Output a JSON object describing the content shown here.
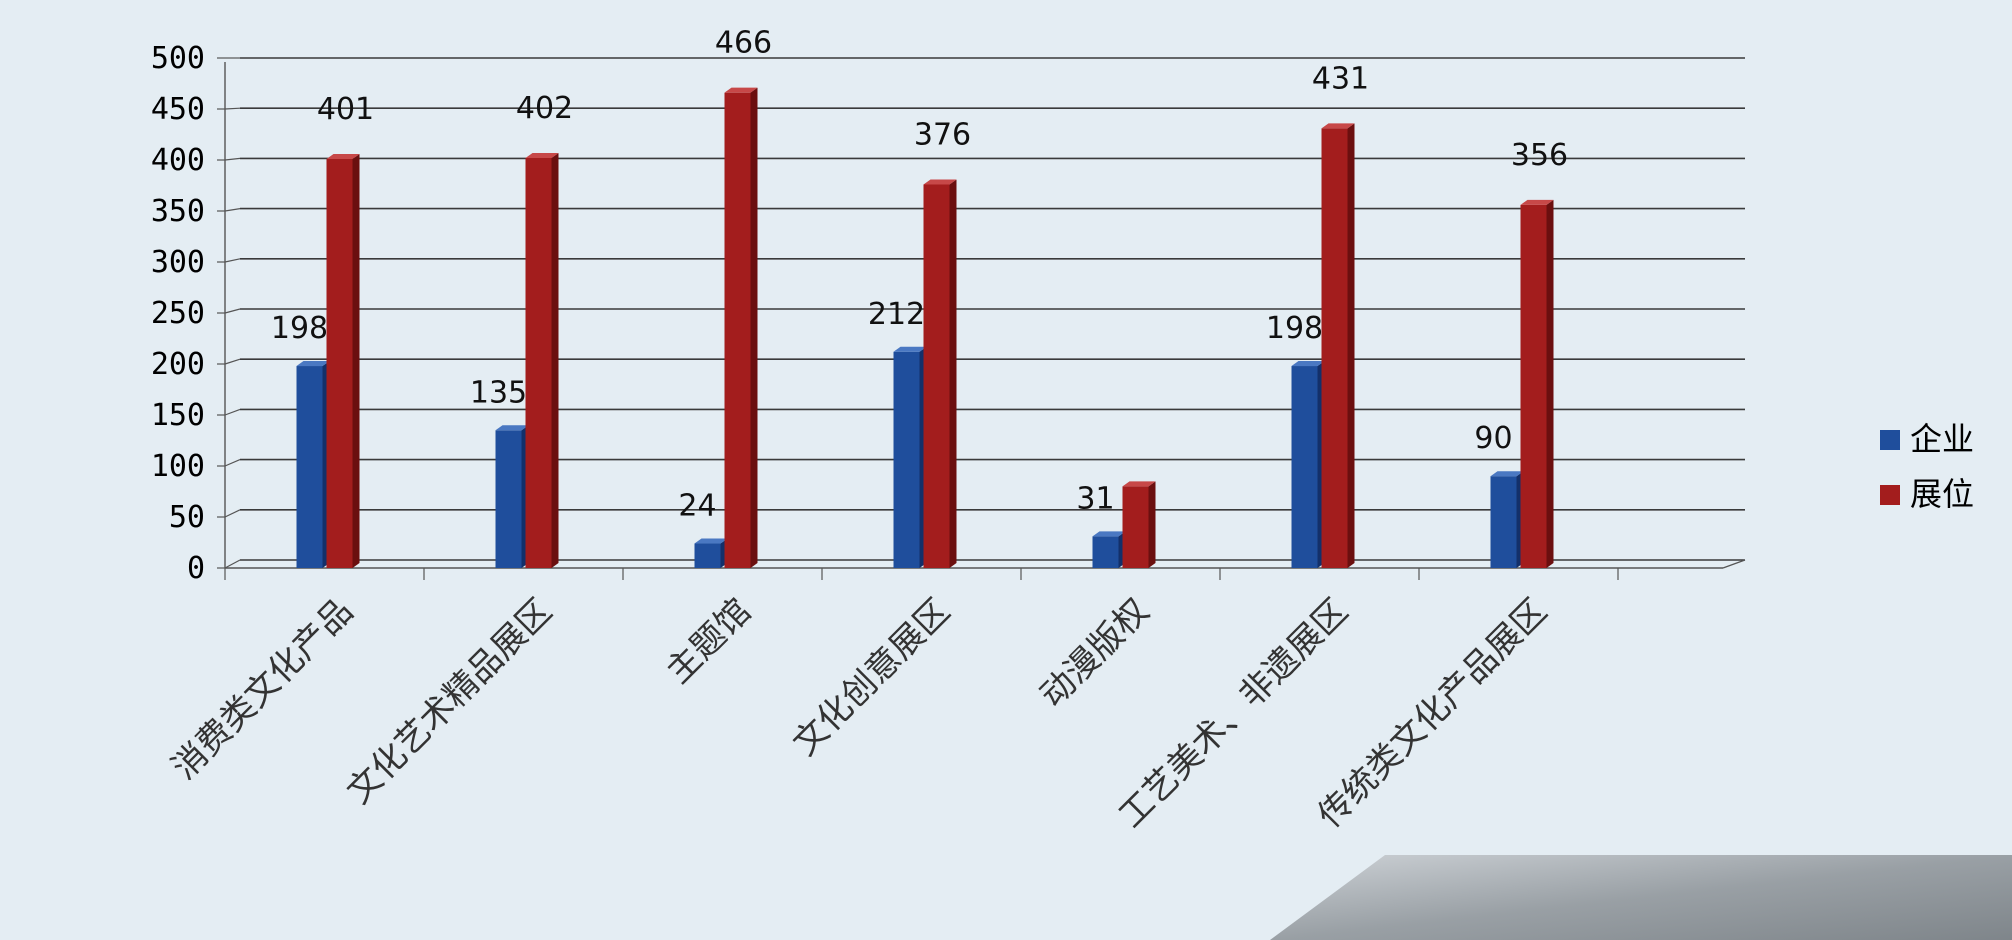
{
  "chart_data": {
    "type": "bar",
    "categories": [
      "消费类文化产品",
      "文化艺术精品展区",
      "主题馆",
      "文化创意展区",
      "动漫版权",
      "工艺美术、非遗展区",
      "传统类文化产品展区"
    ],
    "series": [
      {
        "name": "企业",
        "values": [
          198,
          135,
          24,
          212,
          31,
          198,
          90
        ],
        "color": "#1f4e9c"
      },
      {
        "name": "展位",
        "values": [
          401,
          402,
          466,
          376,
          80,
          431,
          356
        ],
        "color": "#a31d1d"
      }
    ],
    "data_labels": [
      [
        "198",
        "135",
        "24",
        "212",
        "31",
        "198",
        "90"
      ],
      [
        "401",
        "402",
        "466",
        "376",
        "",
        "431",
        "356"
      ]
    ],
    "ylim": [
      0,
      500
    ],
    "yticks": [
      "0",
      "50",
      "100",
      "150",
      "200",
      "250",
      "300",
      "350",
      "400",
      "450",
      "500"
    ],
    "grid": true,
    "legend_position": "right",
    "title": "",
    "xlabel": "",
    "ylabel": ""
  }
}
